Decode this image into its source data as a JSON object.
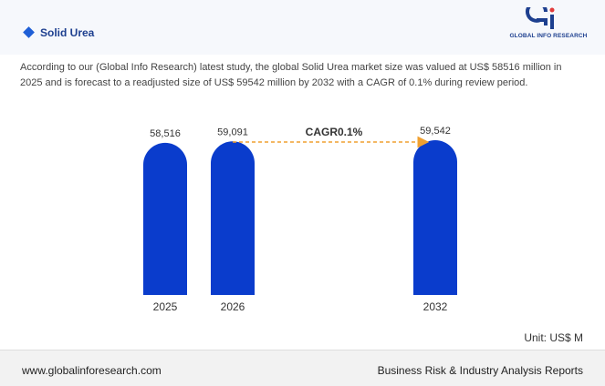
{
  "header": {
    "title": "Solid Urea",
    "logo_text": "GLOBAL INFO RESEARCH"
  },
  "description": "According to our (Global Info Research) latest study, the global Solid Urea market size was valued at US$ 58516 million in 2025 and is forecast to a readjusted size of US$ 59542 million by 2032 with a CAGR of 0.1% during review period.",
  "unit": "Unit: US$ M",
  "footer": {
    "website": "www.globalinforesearch.com",
    "tagline": "Business Risk & Industry Analysis Reports"
  },
  "colors": {
    "bar": "#0a3ccc",
    "cagr_arrow": "#f0a030",
    "title": "#1d3f8f"
  },
  "chart_data": {
    "type": "bar",
    "categories": [
      "2025",
      "2026",
      "2032"
    ],
    "values": [
      58516,
      59091,
      59542
    ],
    "value_labels": [
      "58,516",
      "59,091",
      "59,542"
    ],
    "annotation": "CAGR0.1%",
    "annotation_from": "2026",
    "annotation_to": "2032",
    "grid": false,
    "legend": "none"
  }
}
